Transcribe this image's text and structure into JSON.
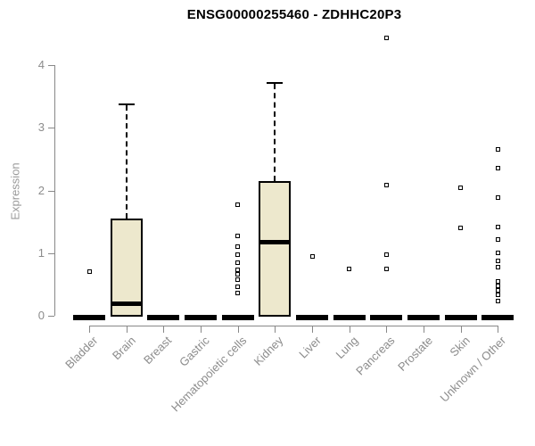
{
  "chart_data": {
    "type": "boxplot",
    "title": "ENSG00000255460 - ZDHHC20P3",
    "ylabel": "Expression",
    "xlabel": "",
    "ylim": [
      0,
      4
    ],
    "yticks": [
      0,
      1,
      2,
      3,
      4
    ],
    "grid": false,
    "legend_position": "none",
    "categories": [
      "Bladder",
      "Brain",
      "Breast",
      "Gastric",
      "Hematopoietic cells",
      "Kidney",
      "Liver",
      "Lung",
      "Pancreas",
      "Prostate",
      "Skin",
      "Unknown / Other"
    ],
    "boxes": [
      {
        "category": "Bladder",
        "min": 0,
        "q1": 0,
        "median": 0,
        "q3": 0,
        "max": 0,
        "outliers": [
          0.7
        ]
      },
      {
        "category": "Brain",
        "min": 0,
        "q1": 0,
        "median": 0.2,
        "q3": 1.55,
        "max": 3.37,
        "outliers": []
      },
      {
        "category": "Breast",
        "min": 0,
        "q1": 0,
        "median": 0,
        "q3": 0,
        "max": 0,
        "outliers": []
      },
      {
        "category": "Gastric",
        "min": 0,
        "q1": 0,
        "median": 0,
        "q3": 0,
        "max": 0,
        "outliers": []
      },
      {
        "category": "Hematopoietic cells",
        "min": 0,
        "q1": 0,
        "median": 0,
        "q3": 0,
        "max": 0,
        "outliers": [
          1.77,
          1.28,
          1.11,
          0.97,
          0.84,
          0.73,
          0.66,
          0.58,
          0.46,
          0.36
        ]
      },
      {
        "category": "Kidney",
        "min": 0,
        "q1": 0,
        "median": 1.18,
        "q3": 2.15,
        "max": 3.71,
        "outliers": []
      },
      {
        "category": "Liver",
        "min": 0,
        "q1": 0,
        "median": 0,
        "q3": 0,
        "max": 0,
        "outliers": [
          0.95
        ]
      },
      {
        "category": "Lung",
        "min": 0,
        "q1": 0,
        "median": 0,
        "q3": 0,
        "max": 0,
        "outliers": [
          0.75
        ]
      },
      {
        "category": "Pancreas",
        "min": 0,
        "q1": 0,
        "median": 0,
        "q3": 0,
        "max": 0,
        "outliers": [
          4.44,
          2.08,
          0.97,
          0.75
        ]
      },
      {
        "category": "Prostate",
        "min": 0,
        "q1": 0,
        "median": 0,
        "q3": 0,
        "max": 0,
        "outliers": []
      },
      {
        "category": "Skin",
        "min": 0,
        "q1": 0,
        "median": 0,
        "q3": 0,
        "max": 0,
        "outliers": [
          2.04,
          1.4
        ]
      },
      {
        "category": "Unknown / Other",
        "min": 0,
        "q1": 0,
        "median": 0,
        "q3": 0,
        "max": 0,
        "outliers": [
          2.65,
          2.35,
          1.89,
          1.41,
          1.21,
          1.0,
          0.87,
          0.77,
          0.55,
          0.48,
          0.41,
          0.33,
          0.24
        ]
      }
    ],
    "colors": {
      "box_fill": "#EDE8CD",
      "box_border": "#000000",
      "median": "#000000",
      "outlier_border": "#000000",
      "axis": "#888888",
      "tick_label": "#8C8C8C",
      "axis_label": "#9A9A9A",
      "title": "#000000",
      "background": "#FFFFFF"
    }
  }
}
